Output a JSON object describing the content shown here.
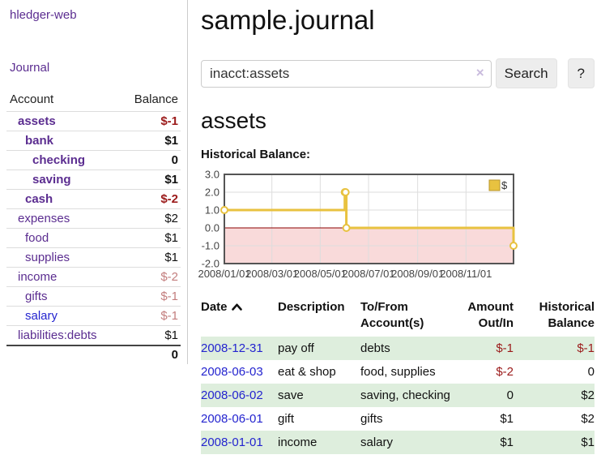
{
  "colors": {
    "link-purple": "#5b2d90",
    "link-blue": "#2424cf",
    "neg-red": "#9b1a1a",
    "neg-soft": "#c37e7e",
    "stripe-green": "#deeedd",
    "chart-gold": "#e8c240",
    "zero-line-red": "#8b0000",
    "negative-region-pink": "#f9dada"
  },
  "sidebar": {
    "brand": "hledger-web",
    "journal_link": "Journal",
    "accounts_table": {
      "headers": {
        "account": "Account",
        "balance": "Balance"
      },
      "rows": [
        {
          "name": "assets",
          "balance": "$-1",
          "indent": 1,
          "bold": true
        },
        {
          "name": "bank",
          "balance": "$1",
          "indent": 2,
          "bold": true
        },
        {
          "name": "checking",
          "balance": "0",
          "indent": 3,
          "bold": true
        },
        {
          "name": "saving",
          "balance": "$1",
          "indent": 3,
          "bold": true
        },
        {
          "name": "cash",
          "balance": "$-2",
          "indent": 2,
          "bold": true
        },
        {
          "name": "expenses",
          "balance": "$2",
          "indent": 1,
          "bold": false
        },
        {
          "name": "food",
          "balance": "$1",
          "indent": 2,
          "bold": false
        },
        {
          "name": "supplies",
          "balance": "$1",
          "indent": 2,
          "bold": false
        },
        {
          "name": "income",
          "balance": "$-2",
          "indent": 1,
          "bold": false
        },
        {
          "name": "gifts",
          "balance": "$-1",
          "indent": 2,
          "bold": false
        },
        {
          "name": "salary",
          "balance": "$-1",
          "indent": 2,
          "bold": false,
          "link_color": "blue"
        },
        {
          "name": "liabilities:debts",
          "balance": "$1",
          "indent": 1,
          "bold": false
        }
      ],
      "total": "0"
    }
  },
  "header": {
    "title": "sample.journal"
  },
  "search": {
    "value": "inacct:assets",
    "clear_icon": "×",
    "button_label": "Search",
    "help_label": "?"
  },
  "account_page": {
    "heading": "assets",
    "chart_label": "Historical Balance:"
  },
  "chart_data": {
    "type": "line",
    "title": "Historical Balance:",
    "step": true,
    "xlim": [
      "2008-01-01",
      "2008-12-31"
    ],
    "ylim": [
      -2,
      3
    ],
    "x_ticks": [
      "2008/01/01",
      "2008/03/01",
      "2008/05/01",
      "2008/07/01",
      "2008/09/01",
      "2008/11/01"
    ],
    "y_ticks": [
      3.0,
      2.0,
      1.0,
      0.0,
      -1.0,
      -2.0
    ],
    "grid": true,
    "legend": {
      "label": "$",
      "position": "top-right"
    },
    "zero_line_color": "#8b0000",
    "negative_region_color": "#f9dada",
    "series": [
      {
        "name": "$",
        "color": "#e8c240",
        "points": [
          {
            "date": "2008-01-01",
            "value": 1
          },
          {
            "date": "2008-06-01",
            "value": 2
          },
          {
            "date": "2008-06-02",
            "value": 2
          },
          {
            "date": "2008-06-03",
            "value": 0
          },
          {
            "date": "2008-12-31",
            "value": -1
          }
        ]
      }
    ]
  },
  "register_table": {
    "headers": {
      "date": "Date",
      "description": "Description",
      "accounts": "To/From Account(s)",
      "amount": "Amount Out/In",
      "balance": "Historical Balance"
    },
    "rows": [
      {
        "date": "2008-12-31",
        "description": "pay off",
        "accounts": "debts",
        "amount": "$-1",
        "balance": "$-1"
      },
      {
        "date": "2008-06-03",
        "description": "eat & shop",
        "accounts": "food, supplies",
        "amount": "$-2",
        "balance": "0"
      },
      {
        "date": "2008-06-02",
        "description": "save",
        "accounts": "saving, checking",
        "amount": "0",
        "balance": "$2"
      },
      {
        "date": "2008-06-01",
        "description": "gift",
        "accounts": "gifts",
        "amount": "$1",
        "balance": "$2"
      },
      {
        "date": "2008-01-01",
        "description": "income",
        "accounts": "salary",
        "amount": "$1",
        "balance": "$1"
      }
    ]
  }
}
